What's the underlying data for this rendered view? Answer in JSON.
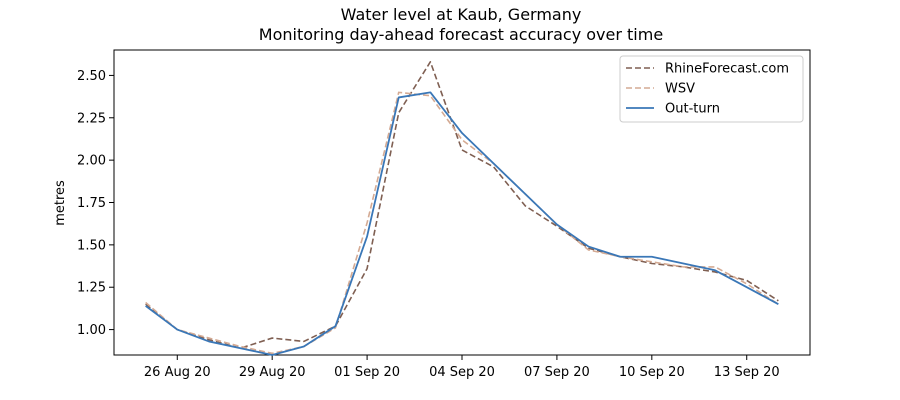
{
  "chart_data": {
    "type": "line",
    "title": "Water level at Kaub, Germany",
    "subtitle": "Monitoring day-ahead forecast accuracy over time",
    "xlabel": "",
    "ylabel": "metres",
    "x_ticks": [
      "26 Aug 20",
      "29 Aug 20",
      "01 Sep 20",
      "04 Sep 20",
      "07 Sep 20",
      "10 Sep 20",
      "13 Sep 20"
    ],
    "x_range": [
      "24 Aug 2020",
      "15 Sep 2020"
    ],
    "ylim": [
      0.85,
      2.65
    ],
    "y_ticks": [
      "1.00",
      "1.25",
      "1.50",
      "1.75",
      "2.00",
      "2.25",
      "2.50"
    ],
    "grid": false,
    "legend_position": "top-right",
    "x": [
      "25 Aug 2020",
      "26 Aug 2020",
      "27 Aug 2020",
      "28 Aug 2020",
      "29 Aug 2020",
      "30 Aug 2020",
      "31 Aug 2020",
      "01 Sep 2020",
      "02 Sep 2020",
      "03 Sep 2020",
      "04 Sep 2020",
      "05 Sep 2020",
      "06 Sep 2020",
      "07 Sep 2020",
      "08 Sep 2020",
      "09 Sep 2020",
      "10 Sep 2020",
      "11 Sep 2020",
      "12 Sep 2020",
      "13 Sep 2020",
      "14 Sep 2020"
    ],
    "series": [
      {
        "name": "RhineForecast.com",
        "color": "#7f5f52",
        "style": "dashed",
        "values": [
          1.15,
          1.0,
          0.94,
          0.89,
          0.95,
          0.93,
          1.02,
          1.36,
          2.28,
          2.58,
          2.06,
          1.96,
          1.73,
          1.61,
          1.48,
          1.43,
          1.39,
          1.37,
          1.34,
          1.29,
          1.17
        ]
      },
      {
        "name": "WSV",
        "color": "#d4aa93",
        "style": "dashed",
        "values": [
          1.16,
          1.0,
          0.95,
          0.9,
          0.86,
          0.9,
          1.01,
          1.63,
          2.4,
          2.38,
          2.12,
          1.98,
          1.8,
          1.62,
          1.47,
          1.43,
          1.4,
          1.37,
          1.37,
          1.27,
          1.15
        ]
      },
      {
        "name": "Out-turn",
        "color": "#3a77b7",
        "style": "solid",
        "values": [
          1.14,
          1.0,
          0.93,
          0.89,
          0.85,
          0.9,
          1.02,
          1.55,
          2.37,
          2.4,
          2.16,
          1.98,
          1.8,
          1.62,
          1.49,
          1.43,
          1.43,
          1.39,
          1.35,
          1.25,
          1.15
        ]
      }
    ]
  }
}
